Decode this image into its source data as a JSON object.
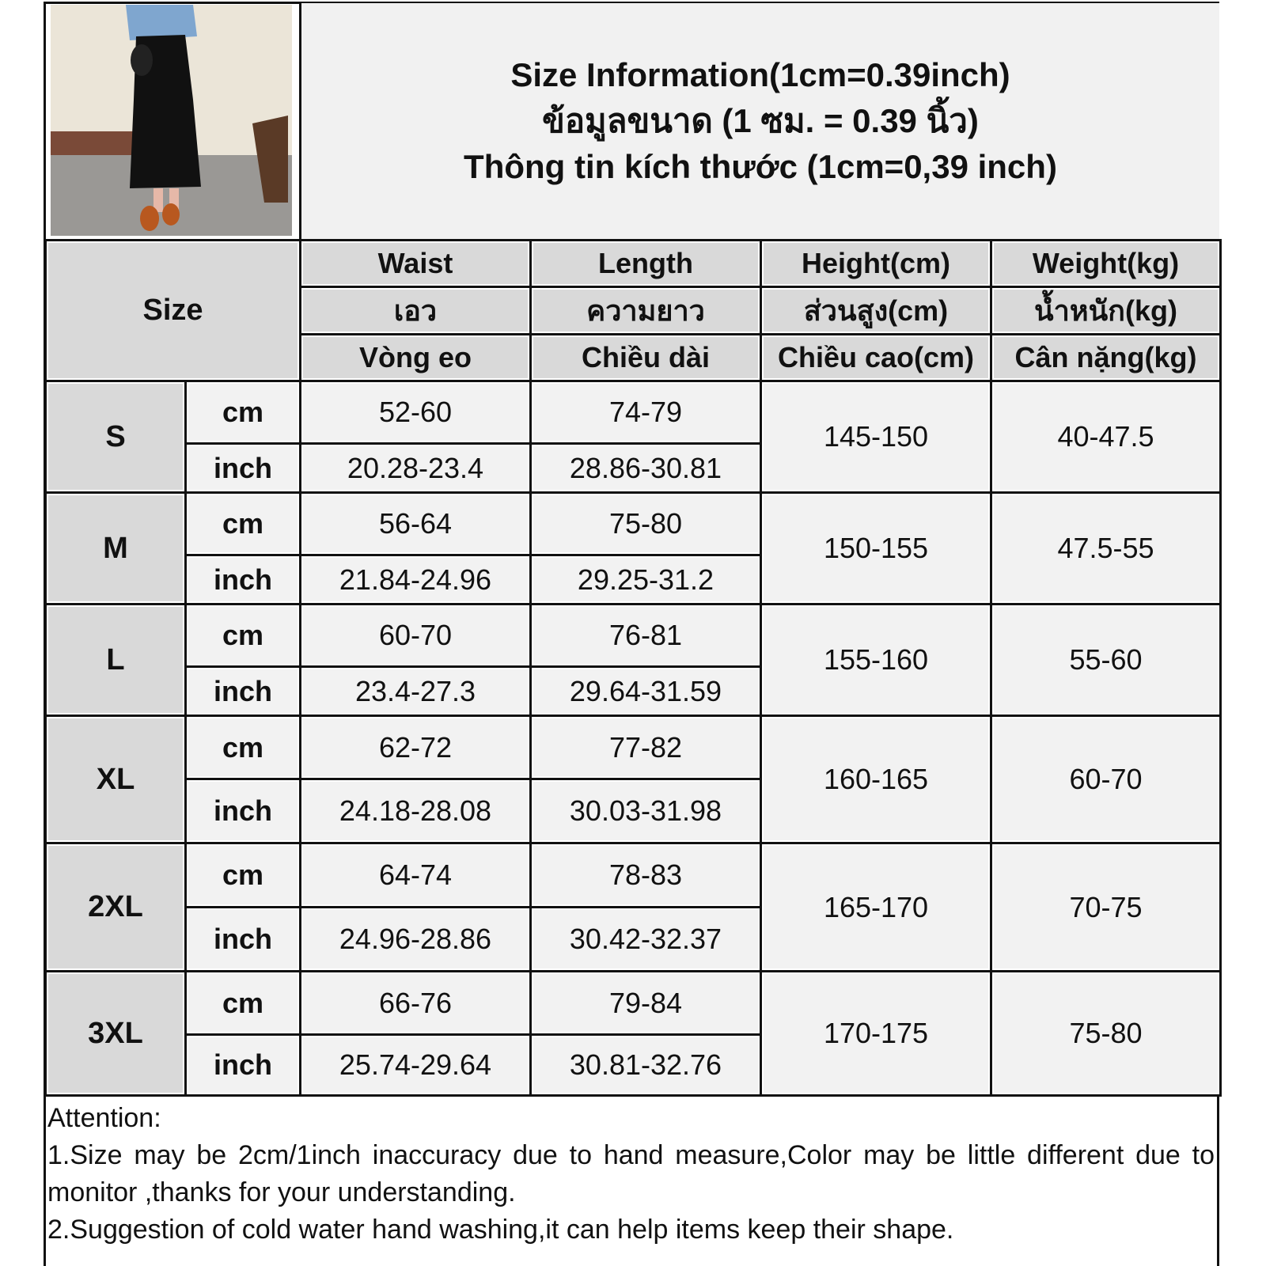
{
  "title": {
    "line1": "Size Information(1cm=0.39inch)",
    "line2": "ข้อมูลขนาด (1 ซม. = 0.39 นิ้ว)",
    "line3": "Thông tin kích thước (1cm=0,39 inch)"
  },
  "header": {
    "size": "Size",
    "columns": [
      {
        "en": "Waist",
        "th": "เอว",
        "vi": "Vòng eo"
      },
      {
        "en": "Length",
        "th": "ความยาว",
        "vi": "Chiều dài"
      },
      {
        "en": "Height(cm)",
        "th": "ส่วนสูง(cm)",
        "vi": "Chiều cao(cm)"
      },
      {
        "en": "Weight(kg)",
        "th": "น้ำหนัก(kg)",
        "vi": "Cân nặng(kg)"
      }
    ]
  },
  "units": {
    "cm": "cm",
    "inch": "inch"
  },
  "rows": [
    {
      "size": "S",
      "waist_cm": "52-60",
      "length_cm": "74-79",
      "waist_in": "20.28-23.4",
      "length_in": "28.86-30.81",
      "height": "145-150",
      "weight": "40-47.5"
    },
    {
      "size": "M",
      "waist_cm": "56-64",
      "length_cm": "75-80",
      "waist_in": "21.84-24.96",
      "length_in": "29.25-31.2",
      "height": "150-155",
      "weight": "47.5-55"
    },
    {
      "size": "L",
      "waist_cm": "60-70",
      "length_cm": "76-81",
      "waist_in": "23.4-27.3",
      "length_in": "29.64-31.59",
      "height": "155-160",
      "weight": "55-60"
    },
    {
      "size": "XL",
      "waist_cm": "62-72",
      "length_cm": "77-82",
      "waist_in": "24.18-28.08",
      "length_in": "30.03-31.98",
      "height": "160-165",
      "weight": "60-70"
    },
    {
      "size": "2XL",
      "waist_cm": "64-74",
      "length_cm": "78-83",
      "waist_in": "24.96-28.86",
      "length_in": "30.42-32.37",
      "height": "165-170",
      "weight": "70-75"
    },
    {
      "size": "3XL",
      "waist_cm": "66-76",
      "length_cm": "79-84",
      "waist_in": "25.74-29.64",
      "length_in": "30.81-32.76",
      "height": "170-175",
      "weight": "75-80"
    }
  ],
  "attention": {
    "heading": "Attention:",
    "note1": "1.Size may be 2cm/1inch inaccuracy due to hand measure,Color may be little different due to monitor ,thanks for your understanding.",
    "note2": "2.Suggestion of cold water hand washing,it can help items keep their shape."
  }
}
